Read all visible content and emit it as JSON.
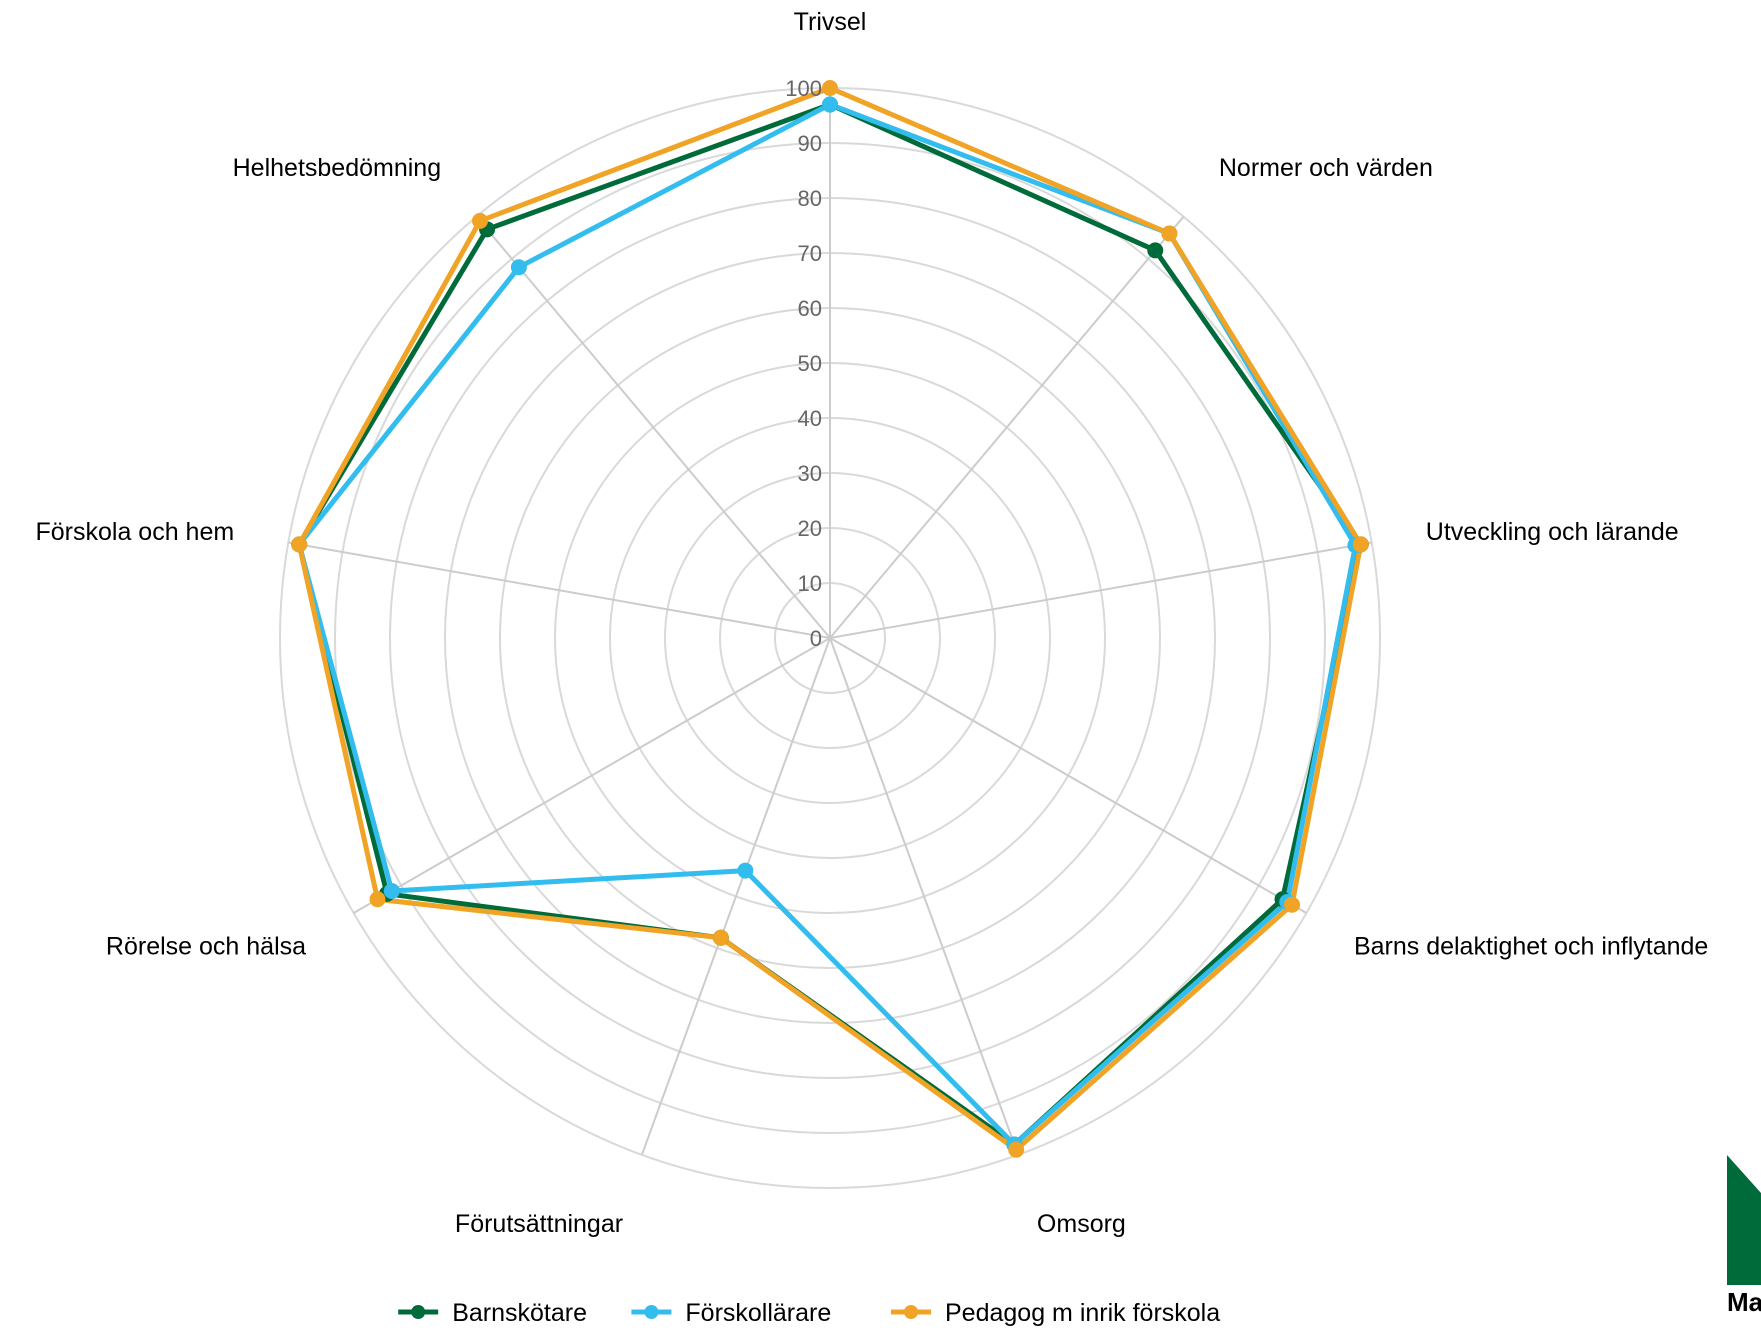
{
  "chart_data": {
    "type": "radar",
    "axes": [
      "Trivsel",
      "Normer och värden",
      "Utveckling och lärande",
      "Barns delaktighet och inflytande",
      "Omsorg",
      "Förutsättningar",
      "Rörelse och hälsa",
      "Förskola och hem",
      "Helhetsbedömning"
    ],
    "rlim": [
      0,
      100
    ],
    "ticks": [
      "0",
      "10",
      "20",
      "30",
      "40",
      "50",
      "60",
      "70",
      "80",
      "90",
      "100"
    ],
    "grid": true,
    "legend_position": "bottom",
    "series": [
      {
        "name": "Barnskötare",
        "color": "#006B3A",
        "values": [
          97,
          92,
          98,
          95,
          98,
          58,
          93,
          98,
          97
        ]
      },
      {
        "name": "Förskollärare",
        "color": "#33BDEF",
        "values": [
          97,
          96,
          97,
          96,
          98,
          45,
          92,
          98,
          88
        ]
      },
      {
        "name": "Pedagog m inrik förskola",
        "color": "#F0A325",
        "values": [
          100,
          96,
          98,
          97,
          99,
          58,
          95,
          98,
          99
        ]
      }
    ]
  },
  "logo": {
    "text": "Ma",
    "color": "#006B3A"
  }
}
